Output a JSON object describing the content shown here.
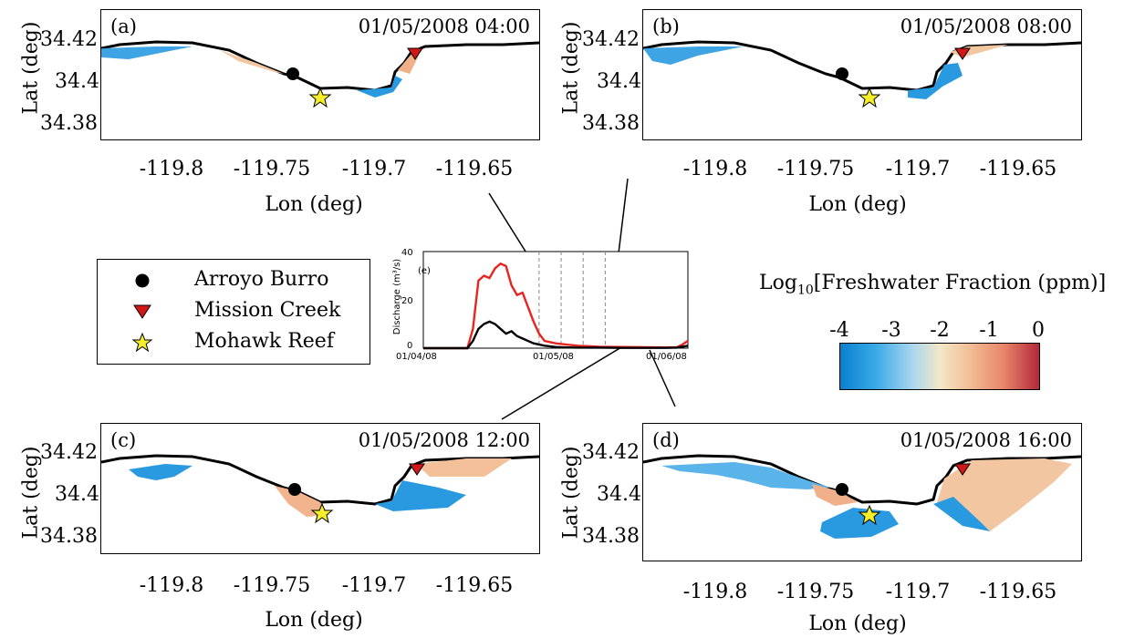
{
  "colors": {
    "coast": "#000000",
    "plume_blue": "#1e90dd",
    "plume_warm": "#f0b38a",
    "marker_red": "#d01818",
    "star_yellow": "#f6ee2a",
    "series_red": "#e8241e",
    "series_black": "#000000"
  },
  "panels": [
    {
      "label": "(a)",
      "time": "01/05/2008 04:00"
    },
    {
      "label": "(b)",
      "time": "01/05/2008 08:00"
    },
    {
      "label": "(c)",
      "time": "01/05/2008 12:00"
    },
    {
      "label": "(d)",
      "time": "01/05/2008 16:00"
    }
  ],
  "axes": {
    "ylabel": "Lat (deg)",
    "xlabel": "Lon (deg)",
    "yticks": [
      "34.42",
      "34.4",
      "34.38"
    ],
    "xticks": [
      "-119.8",
      "-119.75",
      "-119.7",
      "-119.65"
    ]
  },
  "legend": {
    "items": [
      {
        "label": "Arroyo Burro",
        "symbol": "black-circle"
      },
      {
        "label": "Mission Creek",
        "symbol": "red-triangle"
      },
      {
        "label": "Mohawk Reef",
        "symbol": "yellow-star"
      }
    ]
  },
  "colorbar": {
    "title_prefix": "Log",
    "title_sub": "10",
    "title_rest": "[Freshwater Fraction (ppm)]",
    "ticks": [
      "-4",
      "-3",
      "-2",
      "-1",
      "0"
    ],
    "range": [
      -4,
      0
    ]
  },
  "chart_data": {
    "type": "line",
    "panel_label": "(e)",
    "ylabel": "Discharge (m³/s)",
    "y_tick_labels": [
      "0",
      "20",
      "40"
    ],
    "x_tick_labels": [
      "01/04/08",
      "01/05/08",
      "01/06/08"
    ],
    "ylim": [
      0,
      40
    ],
    "xlim": [
      0,
      48
    ],
    "series": [
      {
        "color": "red",
        "x": [
          0,
          8,
          9,
          10,
          11,
          12,
          13,
          14,
          15,
          16,
          17,
          18,
          19,
          20,
          21,
          22,
          24,
          26,
          28,
          30,
          32,
          36,
          40,
          44,
          46,
          47,
          48
        ],
        "values": [
          0,
          0,
          8,
          28,
          30,
          29,
          33,
          35,
          34,
          26,
          22,
          23,
          17,
          11,
          6,
          3,
          2,
          1.5,
          1,
          0.8,
          0.6,
          0.5,
          0.4,
          0.3,
          0.4,
          1.5,
          3
        ]
      },
      {
        "color": "black",
        "x": [
          0,
          8,
          9,
          10,
          11,
          12,
          13,
          14,
          15,
          16,
          17,
          18,
          19,
          20,
          22,
          24,
          26,
          28,
          32,
          36,
          40,
          44,
          46,
          47,
          48
        ],
        "values": [
          0,
          0,
          3,
          8,
          10,
          11,
          10,
          8,
          6,
          7,
          5,
          4,
          3,
          2,
          1,
          0.5,
          0.3,
          0.2,
          0.2,
          0.1,
          0.1,
          0.1,
          0.2,
          0.6,
          1
        ]
      }
    ],
    "vlines_x": [
      21,
      25,
      29,
      33
    ]
  }
}
